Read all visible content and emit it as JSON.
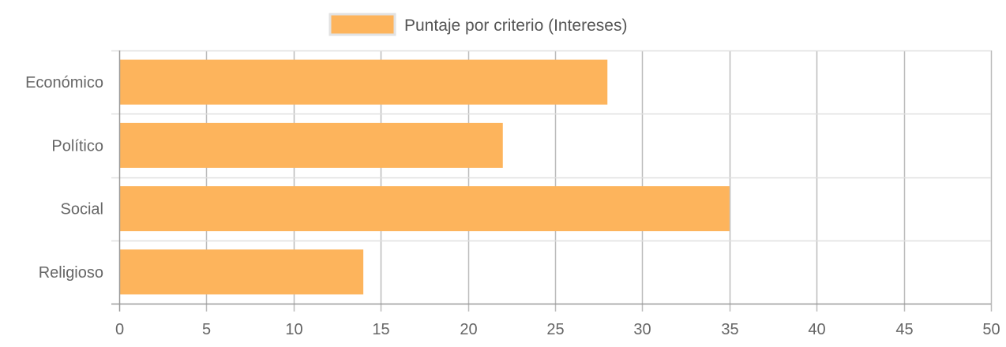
{
  "chart_data": {
    "type": "bar",
    "orientation": "horizontal",
    "categories": [
      "Económico",
      "Político",
      "Social",
      "Religioso"
    ],
    "series": [
      {
        "name": "Puntaje por criterio (Intereses)",
        "values": [
          28,
          22,
          35,
          14
        ],
        "color": "#fdb45c"
      }
    ],
    "xlim": [
      0,
      50
    ],
    "xticks": [
      0,
      5,
      10,
      15,
      20,
      25,
      30,
      35,
      40,
      45,
      50
    ],
    "grid": true,
    "legend_position": "top"
  },
  "colors": {
    "bar": "#fdb45c",
    "grid": "#bbbbbb",
    "axis": "#999999",
    "tick_text": "#666666"
  }
}
